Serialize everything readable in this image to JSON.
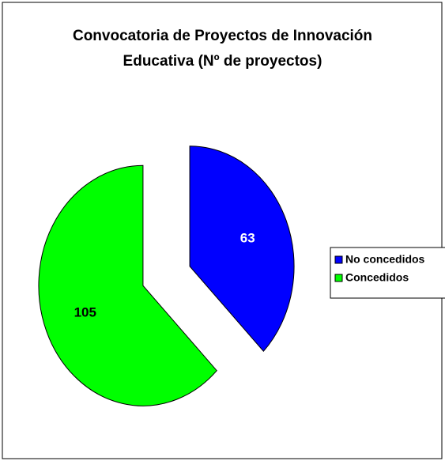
{
  "chart_data": {
    "type": "pie",
    "title": "Convocatoria de Proyectos de Innovación Educativa (Nº de proyectos)",
    "categories": [
      "No concedidos",
      "Concedidos"
    ],
    "values": [
      63,
      105
    ],
    "colors": [
      "#0000ff",
      "#00ff00"
    ]
  }
}
